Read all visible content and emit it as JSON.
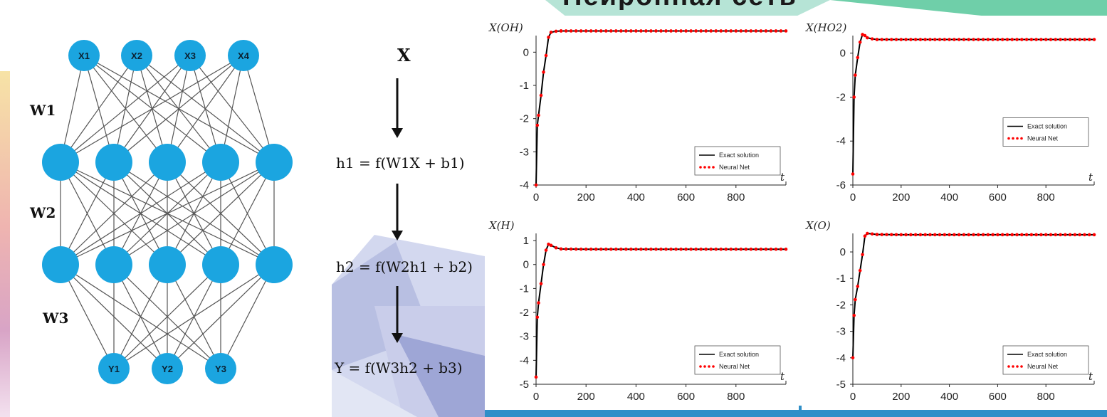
{
  "slide_title": "Нейронная сеть",
  "network": {
    "layers": [
      [
        "X1",
        "X2",
        "X3",
        "X4"
      ],
      [
        "",
        "",
        "",
        "",
        ""
      ],
      [
        "",
        "",
        "",
        "",
        ""
      ],
      [
        "Y1",
        "Y2",
        "Y3"
      ]
    ],
    "weights": [
      "W1",
      "W2",
      "W3"
    ],
    "node_color": "#1ba5e0",
    "edge_color": "#555555"
  },
  "equations": {
    "input": "X",
    "h1": "h1 = f(W1X + b1)",
    "h2": "h2 = f(W2h1 + b2)",
    "output": "Y = f(W3h2 + b3)"
  },
  "chart_data": [
    {
      "type": "line",
      "ylabel": "X(OH)",
      "xlabel": "t",
      "xlim": [
        0,
        1000
      ],
      "ylim": [
        -4,
        0.5
      ],
      "xticks": [
        0,
        200,
        400,
        600,
        800
      ],
      "yticks": [
        0,
        -1,
        -2,
        -3,
        -4
      ],
      "legend": "bottom-right",
      "series": [
        {
          "name": "Exact solution",
          "color": "#000000",
          "x": [
            0,
            5,
            10,
            20,
            30,
            40,
            50,
            60,
            80,
            100,
            200,
            400,
            600,
            800,
            1000
          ],
          "y": [
            -4,
            -2.2,
            -1.9,
            -1.3,
            -0.6,
            -0.1,
            0.45,
            0.6,
            0.63,
            0.64,
            0.64,
            0.64,
            0.64,
            0.64,
            0.64
          ]
        },
        {
          "name": "Neural Net",
          "color": "#ff0000",
          "x": [
            0,
            5,
            10,
            20,
            30,
            40,
            50,
            60,
            80,
            100,
            200,
            400,
            600,
            800,
            1000
          ],
          "y": [
            -4,
            -2.2,
            -1.9,
            -1.3,
            -0.6,
            -0.1,
            0.45,
            0.6,
            0.63,
            0.64,
            0.64,
            0.64,
            0.64,
            0.64,
            0.64
          ]
        }
      ]
    },
    {
      "type": "line",
      "ylabel": "X(HO2)",
      "xlabel": "t",
      "xlim": [
        0,
        1000
      ],
      "ylim": [
        -6,
        0.8
      ],
      "xticks": [
        0,
        200,
        400,
        600,
        800
      ],
      "yticks": [
        0,
        -2,
        -4,
        -6
      ],
      "legend": "right",
      "series": [
        {
          "name": "Exact solution",
          "color": "#000000",
          "x": [
            0,
            5,
            10,
            20,
            30,
            40,
            50,
            60,
            80,
            100,
            200,
            400,
            600,
            800,
            1000
          ],
          "y": [
            -5.5,
            -2.0,
            -1.0,
            -0.2,
            0.5,
            0.85,
            0.8,
            0.7,
            0.65,
            0.62,
            0.62,
            0.62,
            0.62,
            0.62,
            0.62
          ]
        },
        {
          "name": "Neural Net",
          "color": "#ff0000",
          "x": [
            0,
            5,
            10,
            20,
            30,
            40,
            50,
            60,
            80,
            100,
            200,
            400,
            600,
            800,
            1000
          ],
          "y": [
            -5.5,
            -2.0,
            -1.0,
            -0.2,
            0.5,
            0.85,
            0.8,
            0.7,
            0.65,
            0.62,
            0.62,
            0.62,
            0.62,
            0.62,
            0.62
          ]
        }
      ]
    },
    {
      "type": "line",
      "ylabel": "X(H)",
      "xlabel": "t",
      "xlim": [
        0,
        1000
      ],
      "ylim": [
        -5,
        1.3
      ],
      "xticks": [
        0,
        200,
        400,
        600,
        800
      ],
      "yticks": [
        1,
        0,
        -1,
        -2,
        -3,
        -4,
        -5
      ],
      "legend": "bottom-right",
      "series": [
        {
          "name": "Exact solution",
          "color": "#000000",
          "x": [
            0,
            5,
            10,
            20,
            30,
            40,
            50,
            60,
            80,
            100,
            200,
            400,
            600,
            800,
            1000
          ],
          "y": [
            -4.7,
            -2.2,
            -1.6,
            -0.8,
            0.0,
            0.6,
            0.85,
            0.8,
            0.7,
            0.65,
            0.64,
            0.64,
            0.64,
            0.64,
            0.64
          ]
        },
        {
          "name": "Neural Net",
          "color": "#ff0000",
          "x": [
            0,
            5,
            10,
            20,
            30,
            40,
            50,
            60,
            80,
            100,
            200,
            400,
            600,
            800,
            1000
          ],
          "y": [
            -4.7,
            -2.2,
            -1.6,
            -0.8,
            0.0,
            0.6,
            0.85,
            0.8,
            0.7,
            0.65,
            0.64,
            0.64,
            0.64,
            0.64,
            0.64
          ]
        }
      ]
    },
    {
      "type": "line",
      "ylabel": "X(O)",
      "xlabel": "t",
      "xlim": [
        0,
        1000
      ],
      "ylim": [
        -5,
        0.7
      ],
      "xticks": [
        0,
        200,
        400,
        600,
        800
      ],
      "yticks": [
        0,
        -1,
        -2,
        -3,
        -4,
        -5
      ],
      "legend": "bottom-right",
      "series": [
        {
          "name": "Exact solution",
          "color": "#000000",
          "x": [
            0,
            5,
            10,
            20,
            30,
            40,
            50,
            60,
            80,
            100,
            200,
            400,
            600,
            800,
            1000
          ],
          "y": [
            -4.0,
            -2.4,
            -1.8,
            -1.3,
            -0.7,
            -0.1,
            0.6,
            0.7,
            0.68,
            0.66,
            0.65,
            0.65,
            0.65,
            0.65,
            0.65
          ]
        },
        {
          "name": "Neural Net",
          "color": "#ff0000",
          "x": [
            0,
            5,
            10,
            20,
            30,
            40,
            50,
            60,
            80,
            100,
            200,
            400,
            600,
            800,
            1000
          ],
          "y": [
            -4.0,
            -2.4,
            -1.8,
            -1.3,
            -0.7,
            -0.1,
            0.6,
            0.7,
            0.68,
            0.66,
            0.65,
            0.65,
            0.65,
            0.65,
            0.65
          ]
        }
      ]
    }
  ]
}
